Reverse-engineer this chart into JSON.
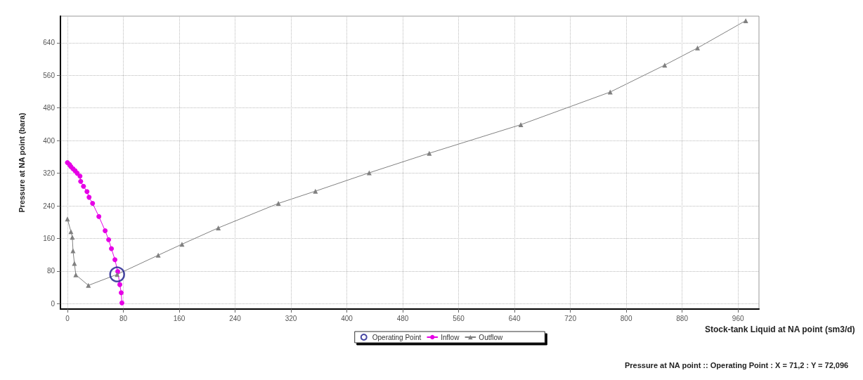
{
  "chart_data": {
    "type": "line",
    "xlabel": "Stock-tank Liquid at NA point (sm3/d)",
    "ylabel": "Pressure at NA point (bara)",
    "xlim": [
      -10,
      990
    ],
    "ylim": [
      -13,
      705
    ],
    "xticks": [
      0,
      80,
      160,
      240,
      320,
      400,
      480,
      560,
      640,
      720,
      800,
      880,
      960
    ],
    "yticks": [
      0,
      80,
      160,
      240,
      320,
      400,
      480,
      560,
      640
    ],
    "grid": true,
    "legend": "bottom",
    "line_style": "solid",
    "annotations": [
      "Pressure at NA point :: Operating Point : X = 71,2 : Y = 72,096"
    ],
    "series": [
      {
        "name": "Operating Point",
        "type": "scatter",
        "marker": "circle",
        "color": "#1a1a8c",
        "x": [
          71.2
        ],
        "values": [
          72
        ]
      },
      {
        "name": "Inflow",
        "marker": "circle",
        "color": "#e600e6",
        "x": [
          0,
          3,
          5,
          8,
          11,
          14,
          18,
          19,
          23,
          28,
          31,
          36,
          45,
          54,
          59,
          63,
          68,
          72,
          75,
          77,
          78
        ],
        "values": [
          346,
          341,
          336,
          331,
          326,
          320,
          313,
          300,
          288,
          275,
          261,
          246,
          214,
          179,
          157,
          135,
          108,
          79,
          47,
          27,
          2
        ]
      },
      {
        "name": "Outflow",
        "marker": "triangle",
        "color": "#808080",
        "x": [
          0,
          5,
          7,
          8,
          10,
          12,
          30,
          71.2,
          130,
          164,
          216,
          302,
          355,
          432,
          518,
          649,
          777,
          855,
          902,
          971
        ],
        "values": [
          208,
          177,
          163,
          130,
          99,
          71,
          45,
          72,
          119,
          146,
          186,
          246,
          276,
          321,
          369,
          439,
          519,
          585,
          627,
          694
        ]
      }
    ]
  }
}
